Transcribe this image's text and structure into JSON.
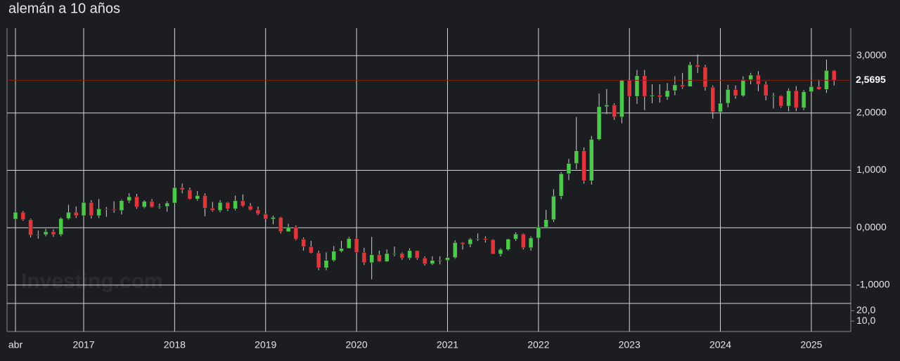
{
  "chart_data": {
    "type": "candlestick",
    "title": "alemán a 10 años",
    "watermark": "Investing.com",
    "up_color": "#4cc94a",
    "down_color": "#e0353a",
    "categories": [
      "abr",
      null,
      null,
      null,
      null,
      null,
      null,
      null,
      null,
      "2017",
      null,
      null,
      null,
      null,
      null,
      null,
      null,
      null,
      null,
      null,
      null,
      "2018",
      null,
      null,
      null,
      null,
      null,
      null,
      null,
      null,
      null,
      null,
      null,
      "2019",
      null,
      null,
      null,
      null,
      null,
      null,
      null,
      null,
      null,
      null,
      null,
      "2020",
      null,
      null,
      null,
      null,
      null,
      null,
      null,
      null,
      null,
      null,
      null,
      "2021",
      null,
      null,
      null,
      null,
      null,
      null,
      null,
      null,
      null,
      null,
      null,
      "2022",
      null,
      null,
      null,
      null,
      null,
      null,
      null,
      null,
      null,
      null,
      null,
      "2023",
      null,
      null,
      null,
      null,
      null,
      null,
      null,
      null,
      null,
      null,
      null,
      "2024",
      null,
      null,
      null,
      null,
      null,
      null,
      null,
      null,
      null,
      null,
      null,
      "2025",
      null,
      null,
      null
    ],
    "open": [
      0.15,
      0.27,
      0.14,
      -0.13,
      -0.12,
      -0.07,
      -0.12,
      0.16,
      0.27,
      0.21,
      0.44,
      0.21,
      0.33,
      0.32,
      0.3,
      0.47,
      0.54,
      0.36,
      0.46,
      0.36,
      0.37,
      0.43,
      0.7,
      0.66,
      0.5,
      0.56,
      0.34,
      0.3,
      0.44,
      0.33,
      0.47,
      0.38,
      0.31,
      0.24,
      0.15,
      0.18,
      -0.07,
      0.01,
      -0.2,
      -0.33,
      -0.44,
      -0.7,
      -0.57,
      -0.41,
      -0.36,
      -0.19,
      -0.43,
      -0.61,
      -0.47,
      -0.59,
      -0.45,
      -0.45,
      -0.53,
      -0.4,
      -0.53,
      -0.63,
      -0.57,
      -0.57,
      -0.52,
      -0.26,
      -0.29,
      -0.2,
      -0.19,
      -0.21,
      -0.46,
      -0.38,
      -0.2,
      -0.11,
      -0.35,
      -0.18,
      0.01,
      0.14,
      0.55,
      0.94,
      1.12,
      1.34,
      0.82,
      1.54,
      2.11,
      2.14,
      1.93,
      2.57,
      2.29,
      2.65,
      2.29,
      2.31,
      2.28,
      2.39,
      2.49,
      2.46,
      2.84,
      2.8,
      2.45,
      2.02,
      2.17,
      2.41,
      2.3,
      2.58,
      2.66,
      2.5,
      2.3,
      2.3,
      2.12,
      2.39,
      2.09,
      2.37,
      2.46,
      2.41,
      2.74
    ],
    "high": [
      0.34,
      0.29,
      0.16,
      -0.05,
      -0.02,
      -0.03,
      0.18,
      0.4,
      0.37,
      0.51,
      0.48,
      0.5,
      0.36,
      0.46,
      0.49,
      0.6,
      0.59,
      0.48,
      0.5,
      0.42,
      0.46,
      0.74,
      0.77,
      0.7,
      0.64,
      0.6,
      0.45,
      0.48,
      0.45,
      0.56,
      0.58,
      0.43,
      0.37,
      0.27,
      0.21,
      0.19,
      0.07,
      0.04,
      -0.17,
      -0.23,
      -0.4,
      -0.43,
      -0.32,
      -0.23,
      -0.16,
      -0.17,
      -0.35,
      -0.16,
      -0.4,
      -0.38,
      -0.33,
      -0.43,
      -0.36,
      -0.4,
      -0.5,
      -0.5,
      -0.5,
      -0.46,
      -0.22,
      -0.25,
      -0.18,
      -0.1,
      -0.15,
      -0.2,
      -0.36,
      -0.19,
      -0.08,
      -0.1,
      -0.15,
      0.05,
      0.31,
      0.67,
      0.97,
      1.2,
      1.93,
      1.4,
      1.6,
      2.34,
      2.42,
      2.17,
      2.58,
      2.6,
      2.75,
      2.75,
      2.5,
      2.5,
      2.52,
      2.64,
      2.7,
      2.89,
      3.02,
      2.84,
      2.48,
      2.35,
      2.49,
      2.48,
      2.64,
      2.7,
      2.73,
      2.55,
      2.35,
      2.31,
      2.43,
      2.47,
      2.4,
      2.62,
      2.58,
      2.93,
      2.75
    ],
    "low": [
      0.08,
      0.12,
      -0.17,
      -0.19,
      -0.15,
      -0.16,
      -0.15,
      0.14,
      0.17,
      0.15,
      0.16,
      0.17,
      0.19,
      0.26,
      0.23,
      0.43,
      0.33,
      0.34,
      0.35,
      0.33,
      0.28,
      0.42,
      0.6,
      0.49,
      0.47,
      0.2,
      0.28,
      0.27,
      0.29,
      0.3,
      0.36,
      0.3,
      0.22,
      0.1,
      0.06,
      -0.1,
      -0.07,
      -0.22,
      -0.4,
      -0.45,
      -0.74,
      -0.74,
      -0.59,
      -0.43,
      -0.36,
      -0.45,
      -0.65,
      -0.9,
      -0.6,
      -0.6,
      -0.5,
      -0.56,
      -0.56,
      -0.56,
      -0.66,
      -0.65,
      -0.64,
      -0.6,
      -0.54,
      -0.38,
      -0.34,
      -0.23,
      -0.26,
      -0.46,
      -0.5,
      -0.4,
      -0.23,
      -0.38,
      -0.4,
      -0.2,
      0.0,
      0.1,
      0.5,
      0.83,
      1.02,
      0.77,
      0.75,
      1.52,
      1.98,
      1.88,
      1.82,
      2.0,
      2.16,
      2.05,
      2.17,
      2.18,
      2.23,
      2.31,
      2.42,
      2.47,
      2.7,
      2.39,
      1.9,
      1.95,
      2.1,
      2.25,
      2.28,
      2.5,
      2.38,
      2.22,
      2.08,
      2.09,
      2.03,
      2.03,
      2.05,
      2.35,
      2.4,
      2.35,
      2.48
    ],
    "close": [
      0.27,
      0.14,
      -0.13,
      -0.12,
      -0.07,
      -0.12,
      0.16,
      0.27,
      0.21,
      0.44,
      0.21,
      0.33,
      0.32,
      0.3,
      0.47,
      0.54,
      0.36,
      0.46,
      0.36,
      0.37,
      0.43,
      0.7,
      0.66,
      0.5,
      0.56,
      0.34,
      0.3,
      0.44,
      0.33,
      0.47,
      0.38,
      0.31,
      0.24,
      0.15,
      0.18,
      -0.07,
      0.01,
      -0.2,
      -0.33,
      -0.44,
      -0.7,
      -0.57,
      -0.41,
      -0.36,
      -0.19,
      -0.43,
      -0.61,
      -0.47,
      -0.59,
      -0.45,
      -0.45,
      -0.53,
      -0.4,
      -0.53,
      -0.63,
      -0.57,
      -0.57,
      -0.52,
      -0.26,
      -0.29,
      -0.2,
      -0.19,
      -0.21,
      -0.46,
      -0.38,
      -0.2,
      -0.11,
      -0.35,
      -0.18,
      0.01,
      0.14,
      0.55,
      0.94,
      1.12,
      1.34,
      0.82,
      1.54,
      2.11,
      2.14,
      1.93,
      2.57,
      2.29,
      2.65,
      2.29,
      2.31,
      2.28,
      2.39,
      2.49,
      2.46,
      2.84,
      2.8,
      2.45,
      2.02,
      2.17,
      2.41,
      2.3,
      2.58,
      2.66,
      2.5,
      2.3,
      2.3,
      2.12,
      2.39,
      2.09,
      2.37,
      2.46,
      2.41,
      2.74,
      2.5695
    ],
    "last_price": {
      "value": 2.5695,
      "label": "2,5695"
    },
    "ylim": [
      -1.32,
      3.48
    ],
    "yticks": [
      {
        "value": 3,
        "label": "3,0000"
      },
      {
        "value": 2,
        "label": "2,0000"
      },
      {
        "value": 1,
        "label": "1,0000"
      },
      {
        "value": 0,
        "label": "0,0000"
      },
      {
        "value": -1,
        "label": "-1,0000"
      }
    ],
    "y2lim": [
      0,
      27
    ],
    "y2ticks": [
      {
        "value": 20,
        "label": "20,0"
      },
      {
        "value": 10,
        "label": "10,0"
      }
    ],
    "grid": true
  }
}
